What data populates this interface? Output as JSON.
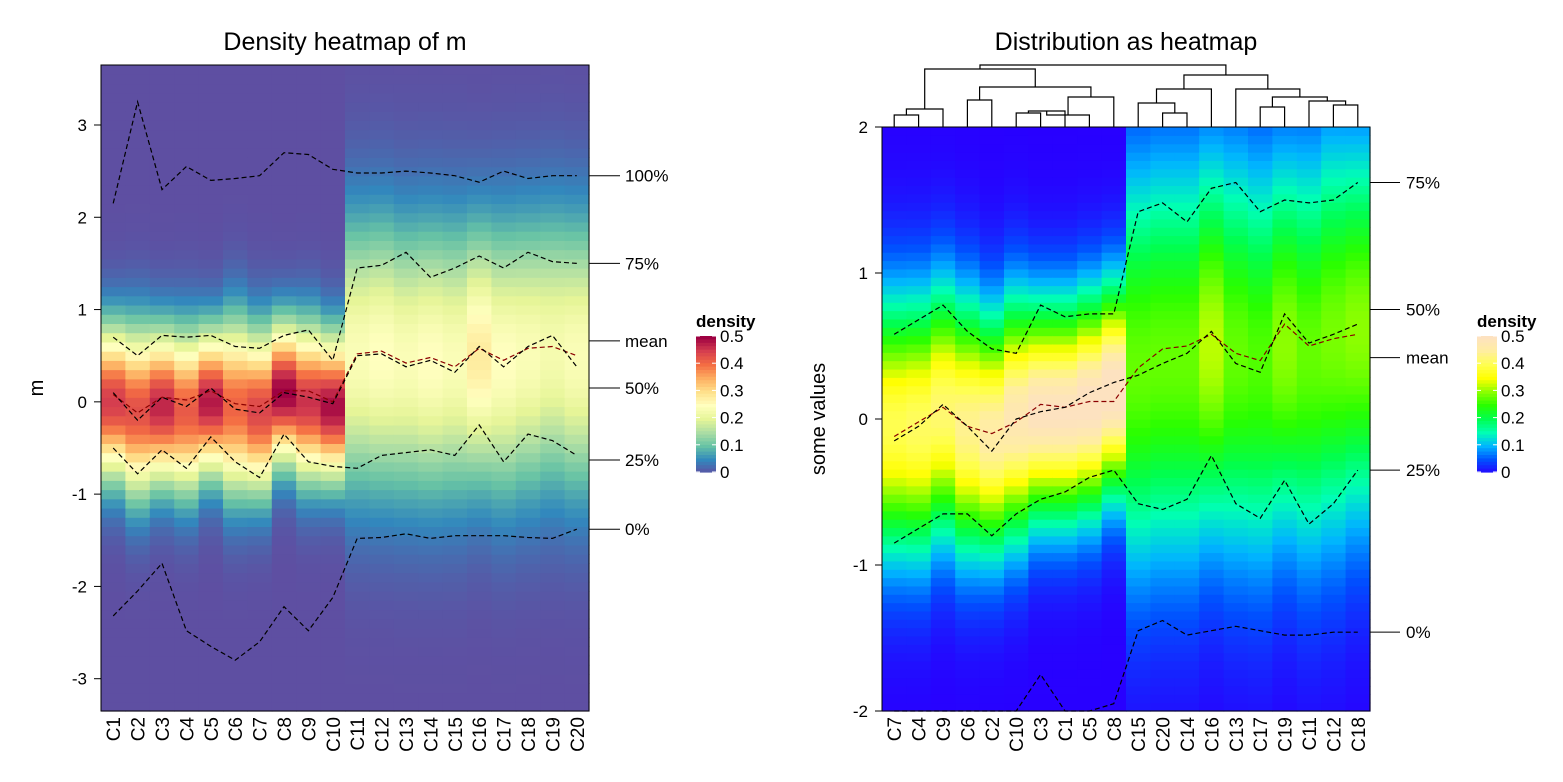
{
  "chart_data": [
    {
      "type": "heatmap",
      "title": "Density heatmap of m",
      "ylabel": "m",
      "xlabel": "",
      "columns": [
        "C1",
        "C2",
        "C3",
        "C4",
        "C5",
        "C6",
        "C7",
        "C8",
        "C9",
        "C10",
        "C11",
        "C12",
        "C13",
        "C14",
        "C15",
        "C16",
        "C17",
        "C18",
        "C19",
        "C20"
      ],
      "ylim": [
        -3.35,
        3.65
      ],
      "yticks": [
        -3,
        -2,
        -1,
        0,
        1,
        2,
        3
      ],
      "palette": [
        "#5e4fa2",
        "#3288bd",
        "#66c2a5",
        "#abdda4",
        "#e6f598",
        "#ffffbf",
        "#fee08b",
        "#fdae61",
        "#f46d43",
        "#d53e4f",
        "#9e0142"
      ],
      "col_center": [
        0.0,
        -0.1,
        -0.05,
        -0.1,
        0.0,
        -0.05,
        -0.1,
        0.1,
        0.0,
        -0.05,
        0.5,
        0.5,
        0.45,
        0.45,
        0.45,
        0.5,
        0.45,
        0.5,
        0.55,
        0.5
      ],
      "col_peak": [
        0.45,
        0.43,
        0.47,
        0.42,
        0.48,
        0.41,
        0.44,
        0.5,
        0.46,
        0.49,
        0.24,
        0.25,
        0.24,
        0.25,
        0.24,
        0.28,
        0.25,
        0.24,
        0.23,
        0.24
      ],
      "col_sd": [
        0.55,
        0.6,
        0.55,
        0.58,
        0.52,
        0.62,
        0.58,
        0.5,
        0.55,
        0.52,
        1.0,
        1.0,
        1.0,
        1.0,
        1.0,
        0.95,
        1.0,
        1.0,
        1.0,
        1.0
      ],
      "quantile_lines": [
        {
          "name": "100%",
          "values": [
            2.15,
            3.25,
            2.3,
            2.55,
            2.4,
            2.42,
            2.45,
            2.7,
            2.68,
            2.52,
            2.48,
            2.48,
            2.5,
            2.48,
            2.45,
            2.38,
            2.5,
            2.42,
            2.45,
            2.45
          ]
        },
        {
          "name": "75%",
          "values": [
            0.7,
            0.5,
            0.72,
            0.7,
            0.72,
            0.6,
            0.58,
            0.72,
            0.78,
            0.45,
            1.45,
            1.48,
            1.62,
            1.35,
            1.45,
            1.58,
            1.45,
            1.62,
            1.52,
            1.5
          ]
        },
        {
          "name": "mean",
          "values": [
            0.08,
            -0.12,
            0.05,
            0.02,
            0.12,
            -0.02,
            -0.05,
            0.12,
            0.12,
            0.0,
            0.52,
            0.55,
            0.42,
            0.48,
            0.38,
            0.58,
            0.45,
            0.58,
            0.6,
            0.5
          ]
        },
        {
          "name": "50%",
          "values": [
            0.1,
            -0.2,
            0.05,
            -0.05,
            0.15,
            -0.08,
            -0.12,
            0.1,
            0.05,
            -0.02,
            0.5,
            0.52,
            0.38,
            0.45,
            0.32,
            0.6,
            0.38,
            0.6,
            0.72,
            0.38
          ]
        },
        {
          "name": "25%",
          "values": [
            -0.5,
            -0.78,
            -0.52,
            -0.72,
            -0.38,
            -0.65,
            -0.82,
            -0.35,
            -0.65,
            -0.7,
            -0.72,
            -0.58,
            -0.55,
            -0.52,
            -0.58,
            -0.25,
            -0.65,
            -0.35,
            -0.42,
            -0.58
          ]
        },
        {
          "name": "0%",
          "values": [
            -2.32,
            -2.05,
            -1.75,
            -2.48,
            -2.65,
            -2.8,
            -2.6,
            -2.22,
            -2.48,
            -2.12,
            -1.48,
            -1.47,
            -1.43,
            -1.48,
            -1.45,
            -1.45,
            -1.45,
            -1.47,
            -1.48,
            -1.38
          ]
        }
      ],
      "quantile_labels": [
        {
          "text": "100%",
          "y": 2.45
        },
        {
          "text": "75%",
          "y": 1.5
        },
        {
          "text": "mean",
          "y": 0.66
        },
        {
          "text": "50%",
          "y": 0.15
        },
        {
          "text": "25%",
          "y": -0.63
        },
        {
          "text": "0%",
          "y": -1.38
        }
      ],
      "legend": {
        "title": "density",
        "ticks": [
          "0.5",
          "0.4",
          "0.3",
          "0.2",
          "0.1",
          "0"
        ]
      }
    },
    {
      "type": "heatmap",
      "title": "Distribution as heatmap",
      "ylabel": "some values",
      "xlabel": "",
      "columns": [
        "C7",
        "C4",
        "C9",
        "C6",
        "C2",
        "C10",
        "C3",
        "C1",
        "C5",
        "C8",
        "C15",
        "C20",
        "C14",
        "C16",
        "C13",
        "C17",
        "C19",
        "C11",
        "C12",
        "C18"
      ],
      "ylim": [
        -2,
        2
      ],
      "yticks": [
        -2,
        -1,
        0,
        1,
        2
      ],
      "palette": [
        "#2800ff",
        "#0050ff",
        "#00b4ff",
        "#00ffb4",
        "#00ff50",
        "#28ff00",
        "#8cff00",
        "#ffff00",
        "#ffff50",
        "#ffeea0",
        "#fde2c0"
      ],
      "col_center": [
        -0.05,
        -0.05,
        0.05,
        -0.05,
        -0.1,
        0.0,
        0.05,
        0.05,
        0.1,
        0.2,
        0.35,
        0.4,
        0.4,
        0.5,
        0.45,
        0.4,
        0.5,
        0.45,
        0.55,
        0.6
      ],
      "col_peak": [
        0.4,
        0.41,
        0.42,
        0.44,
        0.46,
        0.48,
        0.5,
        0.5,
        0.51,
        0.52,
        0.28,
        0.28,
        0.28,
        0.32,
        0.28,
        0.27,
        0.3,
        0.28,
        0.29,
        0.3
      ],
      "col_sd": [
        0.6,
        0.6,
        0.58,
        0.58,
        0.55,
        0.55,
        0.5,
        0.5,
        0.5,
        0.48,
        0.95,
        0.95,
        0.95,
        0.9,
        0.95,
        0.95,
        0.9,
        0.95,
        0.95,
        0.9
      ],
      "quantile_lines": [
        {
          "name": "75%",
          "values": [
            0.58,
            0.68,
            0.78,
            0.6,
            0.48,
            0.45,
            0.78,
            0.7,
            0.72,
            0.72,
            1.42,
            1.48,
            1.35,
            1.58,
            1.62,
            1.42,
            1.5,
            1.48,
            1.5,
            1.62
          ]
        },
        {
          "name": "mean",
          "values": [
            -0.12,
            -0.02,
            0.08,
            -0.05,
            -0.1,
            -0.02,
            0.1,
            0.08,
            0.12,
            0.12,
            0.35,
            0.48,
            0.5,
            0.58,
            0.45,
            0.4,
            0.65,
            0.5,
            0.55,
            0.58
          ]
        },
        {
          "name": "50%",
          "values": [
            -0.15,
            -0.05,
            0.1,
            -0.05,
            -0.22,
            0.0,
            0.05,
            0.08,
            0.18,
            0.25,
            0.3,
            0.38,
            0.45,
            0.6,
            0.38,
            0.32,
            0.72,
            0.52,
            0.58,
            0.65
          ]
        },
        {
          "name": "25%",
          "values": [
            -0.85,
            -0.75,
            -0.65,
            -0.65,
            -0.8,
            -0.65,
            -0.55,
            -0.5,
            -0.4,
            -0.35,
            -0.58,
            -0.62,
            -0.55,
            -0.25,
            -0.58,
            -0.68,
            -0.42,
            -0.72,
            -0.58,
            -0.35
          ]
        },
        {
          "name": "0%",
          "values": [
            -2.3,
            -2.5,
            -2.2,
            -2.6,
            -2.3,
            -2.0,
            -1.75,
            -2.3,
            -2.2,
            -1.95,
            -1.45,
            -1.38,
            -1.48,
            -1.45,
            -1.42,
            -1.45,
            -1.48,
            -1.48,
            -1.46,
            -1.46
          ]
        }
      ],
      "quantile_labels": [
        {
          "text": "75%",
          "y": 1.62
        },
        {
          "text": "50%",
          "y": 0.75
        },
        {
          "text": "mean",
          "y": 0.42
        },
        {
          "text": "25%",
          "y": -0.35
        },
        {
          "text": "0%",
          "y": -1.46
        }
      ],
      "legend": {
        "title": "density",
        "ticks": [
          "0.5",
          "0.4",
          "0.3",
          "0.2",
          "0.1",
          "0"
        ]
      },
      "dendrogram": true
    }
  ]
}
